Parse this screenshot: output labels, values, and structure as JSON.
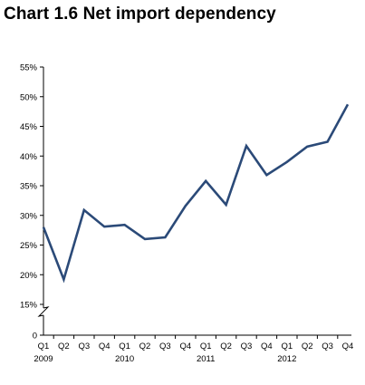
{
  "chart_data": {
    "type": "line",
    "title": "Chart 1.6 Net import dependency",
    "xlabel": "",
    "ylabel": "",
    "x_quarters": [
      "Q1",
      "Q2",
      "Q3",
      "Q4",
      "Q1",
      "Q2",
      "Q3",
      "Q4",
      "Q1",
      "Q2",
      "Q3",
      "Q4",
      "Q1",
      "Q2",
      "Q3",
      "Q4"
    ],
    "x_years": [
      "2009",
      "",
      "",
      "",
      "2010",
      "",
      "",
      "",
      "2011",
      "",
      "",
      "",
      "2012",
      "",
      "",
      ""
    ],
    "y_ticks": [
      "0",
      "15%",
      "20%",
      "25%",
      "30%",
      "35%",
      "40%",
      "45%",
      "50%",
      "55%"
    ],
    "y_axis_break": true,
    "ylim": [
      15,
      55
    ],
    "grid": false,
    "legend": "none",
    "series": [
      {
        "values": [
          28.0,
          19.2,
          30.9,
          28.1,
          28.4,
          26.0,
          26.3,
          31.6,
          35.8,
          31.8,
          41.7,
          36.8,
          39.0,
          41.6,
          42.4,
          48.7
        ],
        "color": "#2b4a78"
      }
    ]
  }
}
